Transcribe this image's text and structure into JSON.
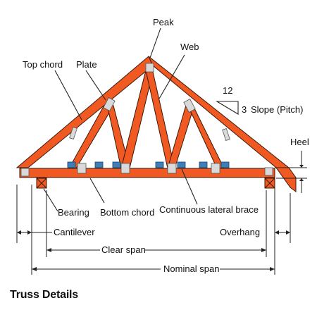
{
  "diagram": {
    "labels": {
      "peak": "Peak",
      "web": "Web",
      "top_chord": "Top chord",
      "plate": "Plate",
      "pitch_rise_run": "12",
      "pitch_rise": "3",
      "slope": "Slope (Pitch)",
      "heel": "Heel",
      "bearing": "Bearing",
      "bottom_chord": "Bottom chord",
      "lateral_brace": "Continuous lateral brace",
      "cantilever": "Cantilever",
      "overhang": "Overhang",
      "clear_span": "Clear span",
      "nominal_span": "Nominal span"
    },
    "caption": "Truss Details",
    "colors": {
      "timber": "#F05A22",
      "timber_stroke": "#3a1a0a",
      "plate": "#D9D9D9",
      "brace": "#3F7FB8",
      "line": "#222222"
    }
  }
}
